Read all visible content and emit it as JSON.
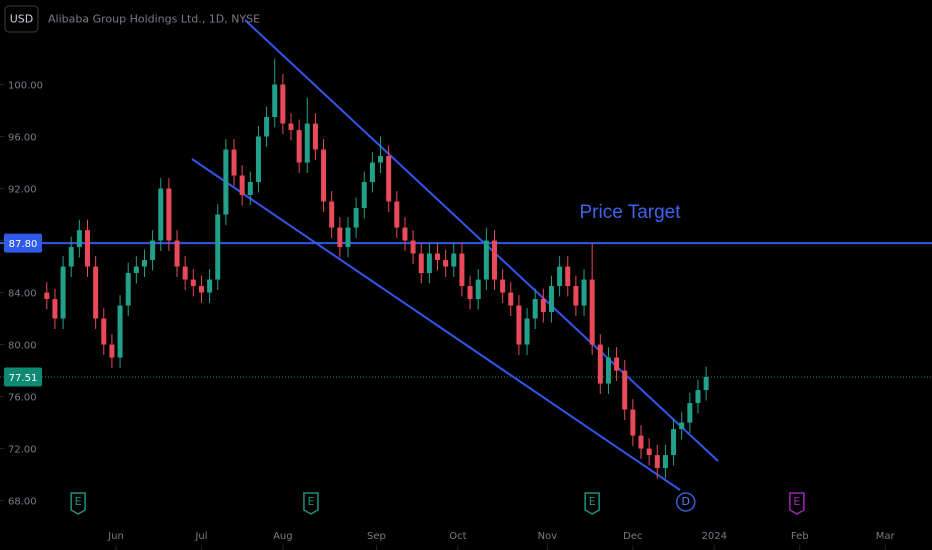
{
  "chart_data": {
    "type": "candlestick",
    "title": "Alibaba Group Holdings Ltd., 1D, NYSE",
    "currency": "USD",
    "annotation": "Price Target",
    "up_color": "#22a08a",
    "down_color": "#e84a5a",
    "x": [
      -17,
      -15,
      -13,
      -11,
      -9,
      -7,
      -5,
      -3,
      -1,
      1,
      3,
      5,
      7,
      9,
      11,
      13,
      15,
      17,
      19,
      21,
      23,
      25,
      27,
      29,
      31,
      33,
      35,
      37,
      39,
      41,
      43,
      45,
      47,
      49,
      51,
      53,
      55,
      57,
      59,
      61,
      63,
      65,
      67,
      69,
      71,
      73,
      75,
      77,
      79,
      81,
      83,
      85,
      87,
      89,
      91,
      93,
      95,
      97,
      99,
      101,
      103,
      105,
      107,
      109,
      111,
      113,
      115,
      117,
      119,
      121,
      123,
      125,
      127,
      129,
      131,
      133,
      135,
      137,
      139,
      141,
      143,
      145
    ],
    "open": [
      84,
      83.5,
      82,
      86,
      87.5,
      88.8,
      86,
      82,
      80,
      79,
      83,
      85.5,
      86,
      86.5,
      88,
      92,
      88,
      86,
      85,
      84.5,
      84,
      85,
      90,
      95,
      93,
      91.5,
      92.5,
      96,
      97.5,
      100,
      97,
      96.5,
      94,
      97,
      95,
      91,
      89,
      87.5,
      89,
      90.5,
      92.5,
      94,
      94.5,
      91,
      89,
      88,
      87,
      85.5,
      87,
      86.5,
      86,
      87,
      84.5,
      83.5,
      85,
      88,
      85,
      84,
      83,
      80,
      82,
      83.5,
      82.5,
      84.5,
      86,
      84.5,
      83,
      85,
      80,
      77,
      79,
      78,
      75,
      73,
      72,
      71.5,
      70.5,
      71.5,
      73.5,
      74,
      75.5,
      76.5
    ],
    "high": [
      84.8,
      84.3,
      86.8,
      88.3,
      89.6,
      89.6,
      86.8,
      82.8,
      80.8,
      83.8,
      86.3,
      86.8,
      87.3,
      88.8,
      92.8,
      92.8,
      88.8,
      86.8,
      85.8,
      85.3,
      85.8,
      90.8,
      95.8,
      95.8,
      93.8,
      93.3,
      96.8,
      98.3,
      102,
      100.8,
      97.8,
      97.3,
      99,
      97.8,
      95.8,
      91.8,
      89.8,
      89.8,
      91.3,
      93.3,
      94.8,
      96,
      95.3,
      91.8,
      89.8,
      88.8,
      87.8,
      87.8,
      87.8,
      87.3,
      87.8,
      87.8,
      85.3,
      85.8,
      89,
      88.8,
      85.8,
      84.8,
      83.8,
      82.8,
      84.3,
      84.3,
      85.3,
      86.8,
      86.8,
      85.3,
      85.8,
      87.8,
      80.8,
      79.8,
      79.8,
      78.8,
      75.8,
      73.8,
      72.8,
      72.3,
      72.3,
      74.3,
      74.8,
      76.3,
      77.3,
      78.3
    ],
    "low": [
      82.7,
      81.2,
      81.2,
      85.2,
      86.7,
      85.2,
      81.2,
      79.2,
      78.2,
      78.2,
      82.2,
      84.7,
      85.2,
      85.7,
      87.2,
      87.2,
      85.2,
      84.2,
      83.7,
      83.2,
      83.2,
      84.2,
      89.2,
      92.2,
      90.7,
      90.7,
      91.7,
      95.2,
      96.7,
      96.2,
      95.7,
      93.2,
      93.2,
      94.2,
      90.2,
      88.2,
      86.7,
      86.7,
      88.2,
      89.7,
      91.7,
      93.2,
      90.2,
      88.2,
      87.2,
      86.2,
      84.7,
      84.7,
      85.7,
      85.2,
      85.2,
      83.7,
      82.7,
      82.7,
      84.2,
      84.2,
      83.2,
      82.2,
      79.2,
      79.2,
      81.2,
      81.7,
      81.7,
      83.7,
      83.7,
      82.2,
      82.2,
      79.2,
      76.2,
      76.2,
      77.2,
      74.2,
      72.2,
      71.2,
      70.7,
      69.7,
      69.7,
      70.7,
      72.7,
      73.2,
      74.7,
      75.7
    ],
    "close": [
      83.5,
      82,
      86,
      87.5,
      88.8,
      86,
      82,
      80,
      79,
      83,
      85.5,
      86,
      86.5,
      88,
      92,
      88,
      86,
      85,
      84.5,
      84,
      85,
      90,
      95,
      93,
      91.5,
      92.5,
      96,
      97.5,
      100,
      97,
      96.5,
      94,
      97,
      95,
      91,
      89,
      87.5,
      89,
      90.5,
      92.5,
      94,
      94.5,
      91,
      89,
      88,
      87,
      85.5,
      87,
      86.5,
      86,
      87,
      84.5,
      83.5,
      85,
      88,
      85,
      84,
      83,
      80,
      82,
      83.5,
      82.5,
      84.5,
      86,
      84.5,
      83,
      85,
      80,
      77,
      79,
      78,
      75,
      73,
      72,
      71.5,
      70.5,
      71.5,
      73.5,
      74,
      75.5,
      76.5,
      77.51
    ],
    "xlim": [
      -28.5,
      200.5
    ],
    "xticks": [
      {
        "value": 0,
        "label": "Jun"
      },
      {
        "value": 21,
        "label": "Jul"
      },
      {
        "value": 41,
        "label": "Aug"
      },
      {
        "value": 64,
        "label": "Sep"
      },
      {
        "value": 84,
        "label": "Oct"
      },
      {
        "value": 106,
        "label": "Nov"
      },
      {
        "value": 127,
        "label": "Dec"
      },
      {
        "value": 147,
        "label": "2024"
      },
      {
        "value": 168,
        "label": "Feb"
      },
      {
        "value": 189,
        "label": "Mar"
      }
    ],
    "ylim": [
      64.2,
      106.5
    ],
    "yticks": [
      {
        "value": 68,
        "label": "68.00"
      },
      {
        "value": 72,
        "label": "72.00"
      },
      {
        "value": 76,
        "label": "76.00"
      },
      {
        "value": 80,
        "label": "80.00"
      },
      {
        "value": 84,
        "label": "84.00"
      },
      {
        "value": 88,
        "label": "88.00"
      },
      {
        "value": 92,
        "label": "92.00"
      },
      {
        "value": 96,
        "label": "96.00"
      },
      {
        "value": 100,
        "label": "100.00"
      }
    ],
    "price_target": {
      "value": 87.8,
      "label": "87.80",
      "color": "#2f5bea"
    },
    "last_price": {
      "value": 77.51,
      "label": "77.51",
      "color": "#0f8a72"
    },
    "events": [
      {
        "x": -9.3,
        "label": "E",
        "color": "#1f8f80"
      },
      {
        "x": 47.9,
        "label": "E",
        "color": "#1f8f80"
      },
      {
        "x": 117,
        "label": "E",
        "color": "#1f8f80"
      },
      {
        "x": 140,
        "label": "D",
        "color": "#3b5bdb"
      },
      {
        "x": 167.3,
        "label": "E",
        "color": "#9c27b0"
      }
    ]
  }
}
